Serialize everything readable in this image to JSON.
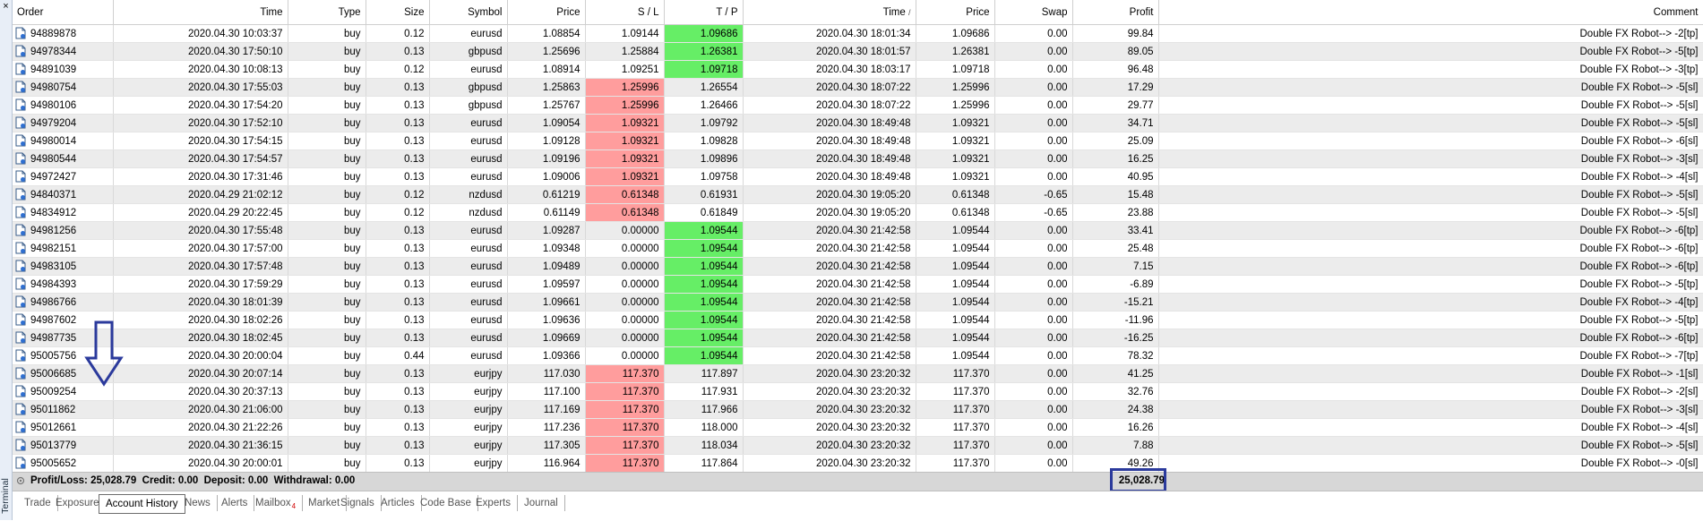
{
  "panel": {
    "label": "Terminal"
  },
  "columns": [
    "Order",
    "Time",
    "Type",
    "Size",
    "Symbol",
    "Price",
    "S / L",
    "T / P",
    "Time",
    "Price",
    "Swap",
    "Profit",
    "Comment"
  ],
  "sort_indicator": "/",
  "rows": [
    [
      "94889878",
      "2020.04.30 10:03:37",
      "buy",
      "0.12",
      "eurusd",
      "1.08854",
      "1.09144",
      "1.09686",
      "2020.04.30 18:01:34",
      "1.09686",
      "0.00",
      "99.84",
      "Double FX Robot--> -2[tp]"
    ],
    [
      "94978344",
      "2020.04.30 17:50:10",
      "buy",
      "0.13",
      "gbpusd",
      "1.25696",
      "1.25884",
      "1.26381",
      "2020.04.30 18:01:57",
      "1.26381",
      "0.00",
      "89.05",
      "Double FX Robot--> -5[tp]"
    ],
    [
      "94891039",
      "2020.04.30 10:08:13",
      "buy",
      "0.12",
      "eurusd",
      "1.08914",
      "1.09251",
      "1.09718",
      "2020.04.30 18:03:17",
      "1.09718",
      "0.00",
      "96.48",
      "Double FX Robot--> -3[tp]"
    ],
    [
      "94980754",
      "2020.04.30 17:55:03",
      "buy",
      "0.13",
      "gbpusd",
      "1.25863",
      "1.25996",
      "1.26554",
      "2020.04.30 18:07:22",
      "1.25996",
      "0.00",
      "17.29",
      "Double FX Robot--> -5[sl]"
    ],
    [
      "94980106",
      "2020.04.30 17:54:20",
      "buy",
      "0.13",
      "gbpusd",
      "1.25767",
      "1.25996",
      "1.26466",
      "2020.04.30 18:07:22",
      "1.25996",
      "0.00",
      "29.77",
      "Double FX Robot--> -5[sl]"
    ],
    [
      "94979204",
      "2020.04.30 17:52:10",
      "buy",
      "0.13",
      "eurusd",
      "1.09054",
      "1.09321",
      "1.09792",
      "2020.04.30 18:49:48",
      "1.09321",
      "0.00",
      "34.71",
      "Double FX Robot--> -5[sl]"
    ],
    [
      "94980014",
      "2020.04.30 17:54:15",
      "buy",
      "0.13",
      "eurusd",
      "1.09128",
      "1.09321",
      "1.09828",
      "2020.04.30 18:49:48",
      "1.09321",
      "0.00",
      "25.09",
      "Double FX Robot--> -6[sl]"
    ],
    [
      "94980544",
      "2020.04.30 17:54:57",
      "buy",
      "0.13",
      "eurusd",
      "1.09196",
      "1.09321",
      "1.09896",
      "2020.04.30 18:49:48",
      "1.09321",
      "0.00",
      "16.25",
      "Double FX Robot--> -3[sl]"
    ],
    [
      "94972427",
      "2020.04.30 17:31:46",
      "buy",
      "0.13",
      "eurusd",
      "1.09006",
      "1.09321",
      "1.09758",
      "2020.04.30 18:49:48",
      "1.09321",
      "0.00",
      "40.95",
      "Double FX Robot--> -4[sl]"
    ],
    [
      "94840371",
      "2020.04.29 21:02:12",
      "buy",
      "0.12",
      "nzdusd",
      "0.61219",
      "0.61348",
      "0.61931",
      "2020.04.30 19:05:20",
      "0.61348",
      "-0.65",
      "15.48",
      "Double FX Robot--> -5[sl]"
    ],
    [
      "94834912",
      "2020.04.29 20:22:45",
      "buy",
      "0.12",
      "nzdusd",
      "0.61149",
      "0.61348",
      "0.61849",
      "2020.04.30 19:05:20",
      "0.61348",
      "-0.65",
      "23.88",
      "Double FX Robot--> -5[sl]"
    ],
    [
      "94981256",
      "2020.04.30 17:55:48",
      "buy",
      "0.13",
      "eurusd",
      "1.09287",
      "0.00000",
      "1.09544",
      "2020.04.30 21:42:58",
      "1.09544",
      "0.00",
      "33.41",
      "Double FX Robot--> -6[tp]"
    ],
    [
      "94982151",
      "2020.04.30 17:57:00",
      "buy",
      "0.13",
      "eurusd",
      "1.09348",
      "0.00000",
      "1.09544",
      "2020.04.30 21:42:58",
      "1.09544",
      "0.00",
      "25.48",
      "Double FX Robot--> -6[tp]"
    ],
    [
      "94983105",
      "2020.04.30 17:57:48",
      "buy",
      "0.13",
      "eurusd",
      "1.09489",
      "0.00000",
      "1.09544",
      "2020.04.30 21:42:58",
      "1.09544",
      "0.00",
      "7.15",
      "Double FX Robot--> -6[tp]"
    ],
    [
      "94984393",
      "2020.04.30 17:59:29",
      "buy",
      "0.13",
      "eurusd",
      "1.09597",
      "0.00000",
      "1.09544",
      "2020.04.30 21:42:58",
      "1.09544",
      "0.00",
      "-6.89",
      "Double FX Robot--> -5[tp]"
    ],
    [
      "94986766",
      "2020.04.30 18:01:39",
      "buy",
      "0.13",
      "eurusd",
      "1.09661",
      "0.00000",
      "1.09544",
      "2020.04.30 21:42:58",
      "1.09544",
      "0.00",
      "-15.21",
      "Double FX Robot--> -4[tp]"
    ],
    [
      "94987602",
      "2020.04.30 18:02:26",
      "buy",
      "0.13",
      "eurusd",
      "1.09636",
      "0.00000",
      "1.09544",
      "2020.04.30 21:42:58",
      "1.09544",
      "0.00",
      "-11.96",
      "Double FX Robot--> -5[tp]"
    ],
    [
      "94987735",
      "2020.04.30 18:02:45",
      "buy",
      "0.13",
      "eurusd",
      "1.09669",
      "0.00000",
      "1.09544",
      "2020.04.30 21:42:58",
      "1.09544",
      "0.00",
      "-16.25",
      "Double FX Robot--> -6[tp]"
    ],
    [
      "95005756",
      "2020.04.30 20:00:04",
      "buy",
      "0.44",
      "eurusd",
      "1.09366",
      "0.00000",
      "1.09544",
      "2020.04.30 21:42:58",
      "1.09544",
      "0.00",
      "78.32",
      "Double FX Robot--> -7[tp]"
    ],
    [
      "95006685",
      "2020.04.30 20:07:14",
      "buy",
      "0.13",
      "eurjpy",
      "117.030",
      "117.370",
      "117.897",
      "2020.04.30 23:20:32",
      "117.370",
      "0.00",
      "41.25",
      "Double FX Robot--> -1[sl]"
    ],
    [
      "95009254",
      "2020.04.30 20:37:13",
      "buy",
      "0.13",
      "eurjpy",
      "117.100",
      "117.370",
      "117.931",
      "2020.04.30 23:20:32",
      "117.370",
      "0.00",
      "32.76",
      "Double FX Robot--> -2[sl]"
    ],
    [
      "95011862",
      "2020.04.30 21:06:00",
      "buy",
      "0.13",
      "eurjpy",
      "117.169",
      "117.370",
      "117.966",
      "2020.04.30 23:20:32",
      "117.370",
      "0.00",
      "24.38",
      "Double FX Robot--> -3[sl]"
    ],
    [
      "95012661",
      "2020.04.30 21:22:26",
      "buy",
      "0.13",
      "eurjpy",
      "117.236",
      "117.370",
      "118.000",
      "2020.04.30 23:20:32",
      "117.370",
      "0.00",
      "16.26",
      "Double FX Robot--> -4[sl]"
    ],
    [
      "95013779",
      "2020.04.30 21:36:15",
      "buy",
      "0.13",
      "eurjpy",
      "117.305",
      "117.370",
      "118.034",
      "2020.04.30 23:20:32",
      "117.370",
      "0.00",
      "7.88",
      "Double FX Robot--> -5[sl]"
    ],
    [
      "95005652",
      "2020.04.30 20:00:01",
      "buy",
      "0.13",
      "eurjpy",
      "116.964",
      "117.370",
      "117.864",
      "2020.04.30 23:20:32",
      "117.370",
      "0.00",
      "49.26",
      "Double FX Robot--> -0[sl]"
    ]
  ],
  "hit_marks": {
    "sl_hit_rows": [
      3,
      4,
      5,
      6,
      7,
      8,
      9,
      10,
      19,
      20,
      21,
      22,
      23,
      24
    ],
    "tp_hit_rows": [
      0,
      1,
      2,
      11,
      12,
      13,
      14,
      15,
      16,
      17,
      18
    ]
  },
  "colors": {
    "sl_hit": "#ff9d9d",
    "tp_hit": "#66ee66",
    "annotation": "#2b3a9c"
  },
  "summary": {
    "text": "Profit/Loss: 25,028.79  Credit: 0.00  Deposit: 0.00  Withdrawal: 0.00",
    "profit_total": "25,028.79"
  },
  "tabs": [
    {
      "label": "Trade"
    },
    {
      "label": "Exposure"
    },
    {
      "label": "Account History",
      "active": true
    },
    {
      "label": "News"
    },
    {
      "label": "Alerts"
    },
    {
      "label": "Mailbox",
      "badge": "4"
    },
    {
      "label": "Market"
    },
    {
      "label": "Signals"
    },
    {
      "label": "Articles"
    },
    {
      "label": "Code Base"
    },
    {
      "label": "Experts"
    },
    {
      "label": "Journal"
    }
  ]
}
